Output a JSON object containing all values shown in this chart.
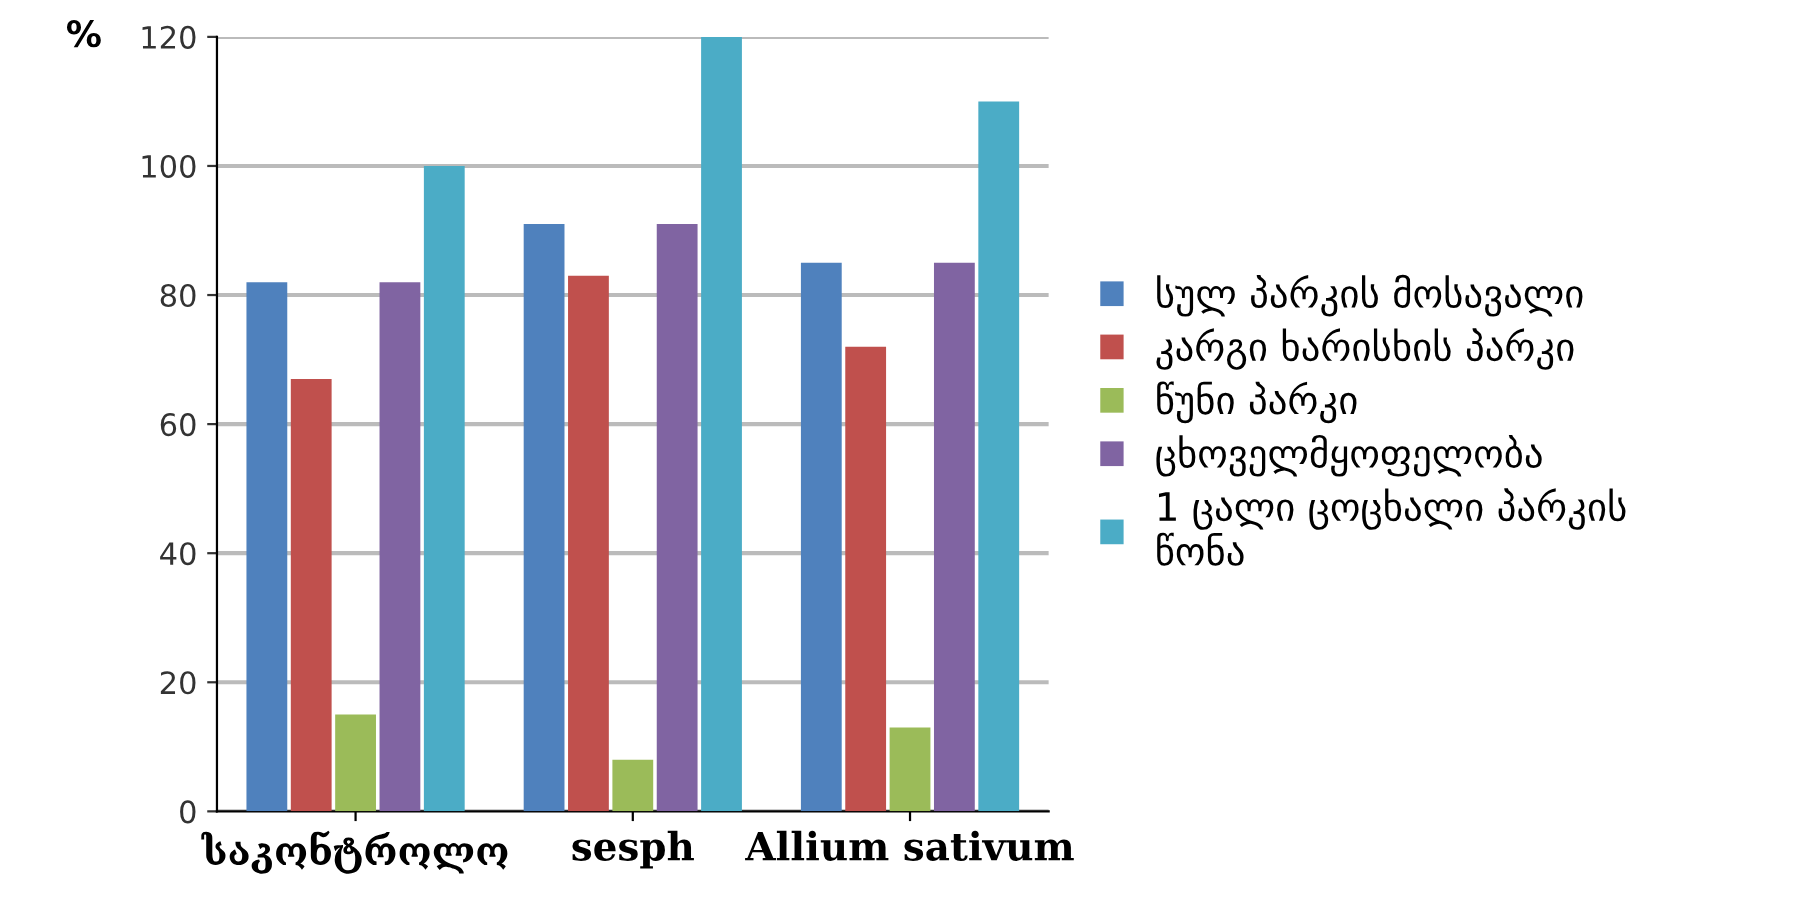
{
  "chart_data": {
    "type": "bar",
    "ylabel": "%",
    "categories": [
      "საკონტროლო",
      "sesph",
      "Allium sativum"
    ],
    "series": [
      {
        "name": "სულ პარკის მოსავალი",
        "color": "#4f81bd",
        "values": [
          82,
          91,
          85
        ]
      },
      {
        "name": "კარგი ხარისხის პარკი",
        "color": "#c0504d",
        "values": [
          67,
          83,
          72
        ]
      },
      {
        "name": "წუნი პარკი",
        "color": "#9bbb59",
        "values": [
          15,
          8,
          13
        ]
      },
      {
        "name": "ცხოველმყოფელობა",
        "color": "#8064a2",
        "values": [
          82,
          91,
          85
        ]
      },
      {
        "name": "1 ცალი ცოცხალი პარკის\nწონა",
        "color": "#4bacc6",
        "values": [
          100,
          120,
          110
        ]
      }
    ],
    "ylim": [
      0,
      120
    ],
    "yticks": [
      0,
      20,
      40,
      60,
      80,
      100,
      120
    ],
    "grid": "y",
    "legend": "right"
  }
}
